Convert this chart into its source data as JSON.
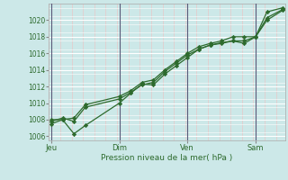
{
  "xlabel": "Pression niveau de la mer( hPa )",
  "bg_color": "#cce8e8",
  "grid_major_color": "#ffffff",
  "grid_minor_color": "#e8c8c8",
  "line_color": "#2d6a2d",
  "marker_color": "#2d6a2d",
  "vline_color": "#5a5a7a",
  "ylim": [
    1005.5,
    1022.0
  ],
  "yticks": [
    1006,
    1008,
    1010,
    1012,
    1014,
    1016,
    1018,
    1020
  ],
  "xtick_labels": [
    "Jeu",
    "Dim",
    "Ven",
    "Sam"
  ],
  "xtick_positions": [
    0.0,
    3.0,
    6.0,
    9.0
  ],
  "xlim": [
    -0.1,
    10.3
  ],
  "line1_x": [
    0.0,
    0.5,
    1.0,
    1.5,
    3.0,
    3.5,
    4.0,
    4.5,
    5.0,
    5.5,
    6.0,
    6.5,
    7.0,
    7.5,
    8.0,
    8.5,
    9.0,
    9.5,
    10.2
  ],
  "line1_y": [
    1007.5,
    1008.0,
    1006.3,
    1007.3,
    1010.0,
    1011.2,
    1012.3,
    1012.2,
    1013.5,
    1014.5,
    1015.5,
    1016.5,
    1017.0,
    1017.2,
    1017.5,
    1017.2,
    1018.0,
    1020.0,
    1021.2
  ],
  "line2_x": [
    0.0,
    0.5,
    1.0,
    1.5,
    3.0,
    3.5,
    4.0,
    4.5,
    5.0,
    5.5,
    6.0,
    6.5,
    7.0,
    7.5,
    8.0,
    8.5,
    9.0,
    9.5,
    10.2
  ],
  "line2_y": [
    1008.0,
    1008.0,
    1008.2,
    1009.8,
    1010.8,
    1011.5,
    1012.5,
    1012.8,
    1014.0,
    1015.0,
    1016.0,
    1016.8,
    1017.2,
    1017.5,
    1018.0,
    1018.0,
    1018.0,
    1021.0,
    1021.5
  ],
  "line3_x": [
    0.0,
    0.5,
    1.0,
    1.5,
    3.0,
    3.5,
    4.0,
    4.5,
    5.0,
    5.5,
    6.0,
    6.5,
    7.0,
    7.5,
    8.0,
    8.5,
    9.0,
    9.5,
    10.2
  ],
  "line3_y": [
    1007.8,
    1008.2,
    1007.8,
    1009.5,
    1010.5,
    1011.3,
    1012.2,
    1012.5,
    1013.8,
    1014.8,
    1015.8,
    1016.5,
    1017.0,
    1017.3,
    1017.5,
    1017.5,
    1018.0,
    1020.3,
    1021.3
  ]
}
